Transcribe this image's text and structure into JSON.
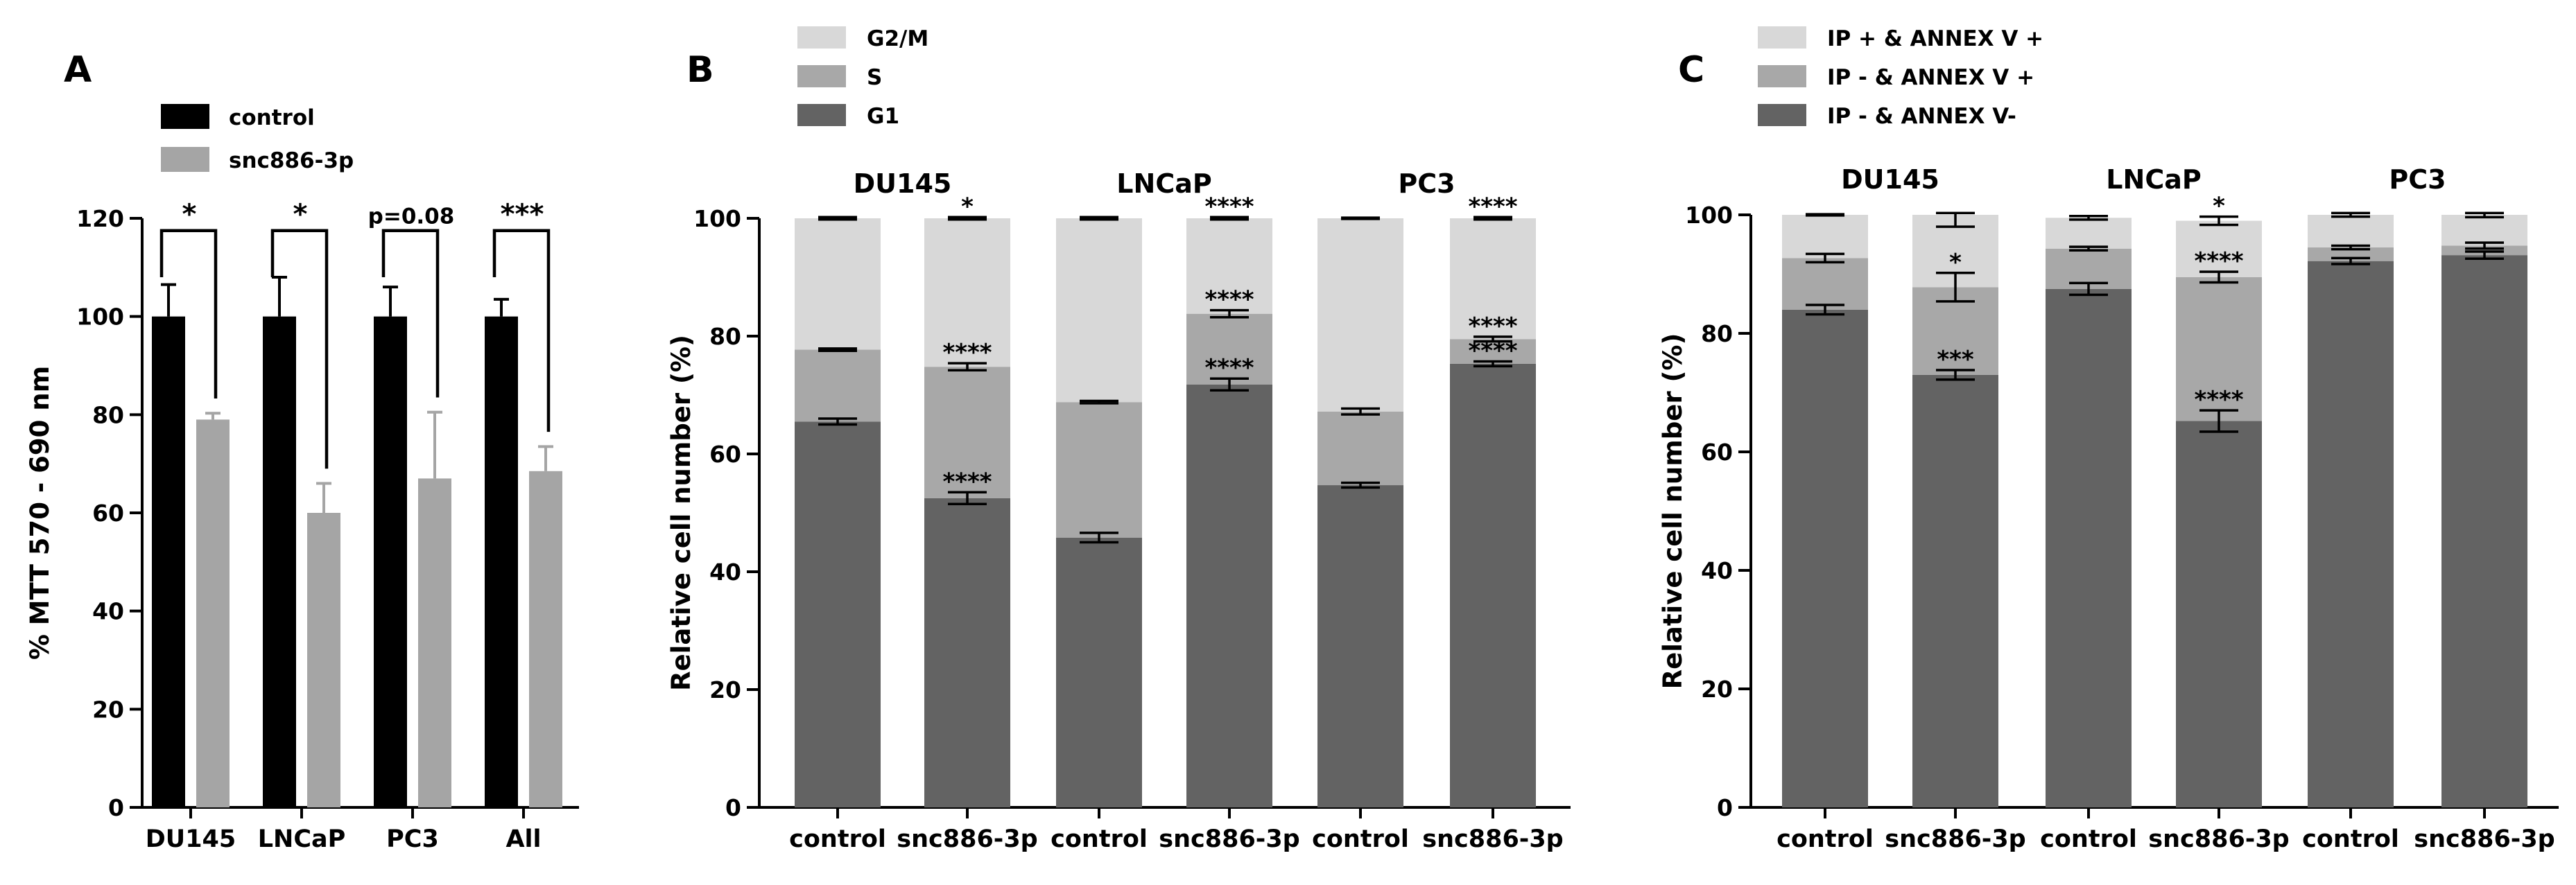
{
  "colors": {
    "control": "#000000",
    "snc886": "#a5a5a5",
    "g1": "#636363",
    "s": "#a8a8a8",
    "g2m": "#d8d8d8",
    "living": "#636363",
    "early": "#a8a8a8",
    "late": "#d8d8d8"
  },
  "chart_data": [
    {
      "type": "bar",
      "panel": "A",
      "title": "",
      "ylabel": "% MTT 570 - 690 nm",
      "xlabel": "",
      "ylim": [
        0,
        120
      ],
      "yticks": [
        "0",
        "20",
        "40",
        "60",
        "80",
        "100",
        "120"
      ],
      "categories": [
        "DU145",
        "LNCaP",
        "PC3",
        "All"
      ],
      "legend": [
        "control",
        "snc886-3p"
      ],
      "series": [
        {
          "name": "control",
          "values": [
            100,
            100,
            100,
            100
          ],
          "errors": [
            6.5,
            8,
            6,
            3.5
          ]
        },
        {
          "name": "snc886-3p",
          "values": [
            79,
            60,
            67,
            68.5
          ],
          "errors": [
            1.3,
            6,
            13.5,
            5
          ]
        }
      ],
      "significance": [
        "*",
        "*",
        "p=0.08",
        "***"
      ]
    },
    {
      "type": "bar",
      "panel": "B",
      "stacked": true,
      "ylabel": "Relative cell number (%)",
      "ylim": [
        0,
        100
      ],
      "yticks": [
        "0",
        "20",
        "40",
        "60",
        "80",
        "100"
      ],
      "legend": [
        "G2/M",
        "S",
        "G1"
      ],
      "groups": [
        "DU145",
        "LNCaP",
        "PC3"
      ],
      "categories": [
        "control",
        "snc886-3p",
        "control",
        "snc886-3p",
        "control",
        "snc886-3p"
      ],
      "series": [
        {
          "name": "G1",
          "values": [
            65.5,
            52.5,
            45.8,
            71.8,
            54.7,
            75.3
          ],
          "errors": [
            0.5,
            1.0,
            0.8,
            1.0,
            0.4,
            0.4
          ]
        },
        {
          "name": "S",
          "values": [
            12.2,
            22.3,
            23.0,
            12.0,
            12.5,
            4.2
          ],
          "errors": [
            0.2,
            0.6,
            0.2,
            0.6,
            0.5,
            0.4
          ]
        },
        {
          "name": "G2/M",
          "values": [
            22.3,
            25.2,
            31.2,
            16.2,
            32.8,
            20.5
          ],
          "errors": [
            0.2,
            0.2,
            0.2,
            0.2,
            0.1,
            0.2
          ]
        }
      ],
      "annotations": {
        "G1": [
          "",
          "****",
          "",
          "****",
          "",
          "****"
        ],
        "S": [
          "",
          "****",
          "",
          "****",
          "",
          "****"
        ],
        "G2/M": [
          "",
          "*",
          "",
          "****",
          "",
          "****"
        ]
      }
    },
    {
      "type": "bar",
      "panel": "C",
      "stacked": true,
      "ylabel": "Relative cell number (%)",
      "ylim": [
        0,
        100
      ],
      "yticks": [
        "0",
        "20",
        "40",
        "60",
        "80",
        "100"
      ],
      "legend": [
        "IP + & ANNEX V +",
        "IP - & ANNEX V +",
        "IP - & ANNEX V-"
      ],
      "groups": [
        "DU145",
        "LNCaP",
        "PC3"
      ],
      "categories": [
        "control",
        "snc886-3p",
        "control",
        "snc886-3p",
        "control",
        "snc886-3p"
      ],
      "series": [
        {
          "name": "IP - & ANNEX V-",
          "values": [
            84.0,
            73.0,
            87.5,
            65.2,
            92.2,
            93.2
          ],
          "errors": [
            0.8,
            0.8,
            1.0,
            1.8,
            0.5,
            0.6
          ]
        },
        {
          "name": "IP - & ANNEX V +",
          "values": [
            8.7,
            14.8,
            6.8,
            24.3,
            2.3,
            1.6
          ],
          "errors": [
            0.7,
            2.4,
            0.3,
            0.9,
            0.3,
            0.5
          ]
        },
        {
          "name": "IP + & ANNEX V +",
          "values": [
            7.3,
            12.2,
            5.2,
            9.5,
            5.5,
            5.2
          ],
          "errors": [
            0.1,
            2.0,
            0.3,
            0.7,
            0.3,
            0.4
          ]
        }
      ],
      "annotations": {
        "IP - & ANNEX V-": [
          "",
          "***",
          "",
          "****",
          "",
          ""
        ],
        "IP - & ANNEX V +": [
          "",
          "*",
          "",
          "****",
          "",
          ""
        ],
        "IP + & ANNEX V +": [
          "",
          "",
          "",
          "*",
          "",
          ""
        ]
      }
    }
  ]
}
